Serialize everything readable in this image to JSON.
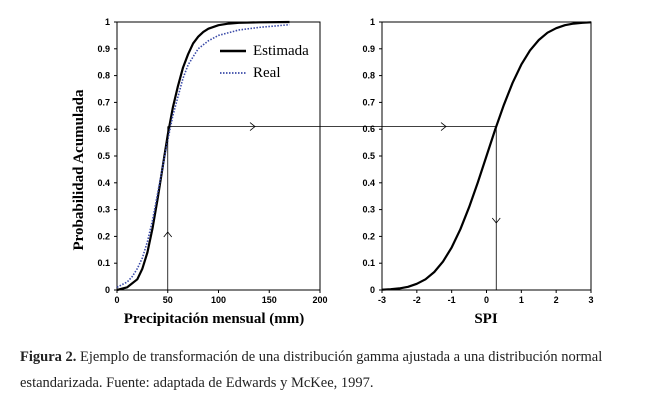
{
  "chart_data": [
    {
      "type": "line",
      "name": "precipitation-cdf",
      "xlabel": "Precipitación mensual (mm)",
      "ylabel": "Probabilidad Acumulada",
      "xlim": [
        0,
        200
      ],
      "ylim": [
        0,
        1
      ],
      "x_ticks": [
        "0",
        "50",
        "100",
        "150",
        "200"
      ],
      "y_ticks": [
        "0",
        "0.1",
        "0.2",
        "0.3",
        "0.4",
        "0.5",
        "0.6",
        "0.7",
        "0.8",
        "0.9",
        "1"
      ],
      "legend": {
        "position": "top-right",
        "entries": [
          "Estimada",
          "Real"
        ]
      },
      "series": [
        {
          "name": "Estimada",
          "style": "solid",
          "color": "#000000",
          "x": [
            0,
            10,
            20,
            25,
            30,
            35,
            40,
            45,
            50,
            55,
            60,
            65,
            70,
            75,
            80,
            85,
            90,
            100,
            110,
            120,
            140,
            170
          ],
          "y": [
            0.0,
            0.01,
            0.04,
            0.08,
            0.14,
            0.23,
            0.34,
            0.46,
            0.58,
            0.68,
            0.76,
            0.83,
            0.88,
            0.92,
            0.945,
            0.963,
            0.975,
            0.988,
            0.994,
            0.997,
            0.999,
            1.0
          ]
        },
        {
          "name": "Real",
          "style": "dotted",
          "color": "#3a4aa8",
          "x": [
            0,
            5,
            10,
            15,
            20,
            25,
            30,
            35,
            40,
            45,
            50,
            55,
            60,
            65,
            70,
            75,
            80,
            85,
            90,
            100,
            110,
            120,
            140,
            170
          ],
          "y": [
            0.01,
            0.02,
            0.03,
            0.05,
            0.08,
            0.12,
            0.18,
            0.26,
            0.36,
            0.46,
            0.56,
            0.65,
            0.72,
            0.79,
            0.84,
            0.87,
            0.9,
            0.915,
            0.93,
            0.95,
            0.96,
            0.97,
            0.98,
            0.99
          ]
        }
      ],
      "annotation": {
        "x": 50,
        "y": 0.61
      }
    },
    {
      "type": "line",
      "name": "spi-cdf",
      "xlabel": "SPI",
      "ylabel": "",
      "xlim": [
        -3,
        3
      ],
      "ylim": [
        0,
        1
      ],
      "x_ticks": [
        "-3",
        "-2",
        "-1",
        "0",
        "1",
        "2",
        "3"
      ],
      "y_ticks": [
        "0",
        "0.1",
        "0.2",
        "0.3",
        "0.4",
        "0.5",
        "0.6",
        "0.7",
        "0.8",
        "0.9",
        "1"
      ],
      "series": [
        {
          "name": "SPI",
          "style": "solid",
          "color": "#000000",
          "x": [
            -3,
            -2.75,
            -2.5,
            -2.25,
            -2,
            -1.75,
            -1.5,
            -1.25,
            -1,
            -0.75,
            -0.5,
            -0.25,
            0,
            0.25,
            0.5,
            0.75,
            1,
            1.25,
            1.5,
            1.75,
            2,
            2.25,
            2.5,
            2.75,
            3
          ],
          "y": [
            0.001,
            0.003,
            0.006,
            0.012,
            0.023,
            0.04,
            0.067,
            0.106,
            0.159,
            0.227,
            0.309,
            0.401,
            0.5,
            0.599,
            0.691,
            0.773,
            0.841,
            0.894,
            0.933,
            0.96,
            0.977,
            0.988,
            0.994,
            0.997,
            0.999
          ]
        }
      ],
      "annotation": {
        "x": 0.28,
        "y": 0.61
      }
    }
  ],
  "caption": {
    "label": "Figura 2.",
    "text": "Ejemplo de transformación de una distribución gamma ajustada a una distribución normal estandarizada. Fuente: adaptada de Edwards y McKee, 1997."
  }
}
